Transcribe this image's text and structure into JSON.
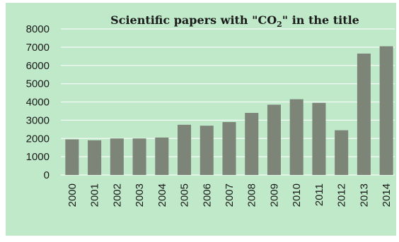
{
  "chart_data": {
    "type": "bar",
    "title": "Scientific papers with \"CO2\" in the title",
    "title_parts": {
      "before": "Scientific papers with \"CO",
      "subscript": "2",
      "after": "\" in the title"
    },
    "categories": [
      "2000",
      "2001",
      "2002",
      "2003",
      "2004",
      "2005",
      "2006",
      "2007",
      "2008",
      "2009",
      "2010",
      "2011",
      "2012",
      "2013",
      "2014"
    ],
    "values": [
      1950,
      1900,
      2000,
      2000,
      2050,
      2750,
      2700,
      2900,
      3400,
      3850,
      4150,
      3950,
      2450,
      6650,
      7050
    ],
    "yticks": [
      0,
      1000,
      2000,
      3000,
      4000,
      5000,
      6000,
      7000,
      8000
    ],
    "ylim": [
      0,
      8000
    ],
    "xlabel": "",
    "ylabel": "",
    "grid": true,
    "colors": {
      "background": "#bfe9c9",
      "bar": "#7d8579",
      "grid": "#ffffff"
    }
  }
}
